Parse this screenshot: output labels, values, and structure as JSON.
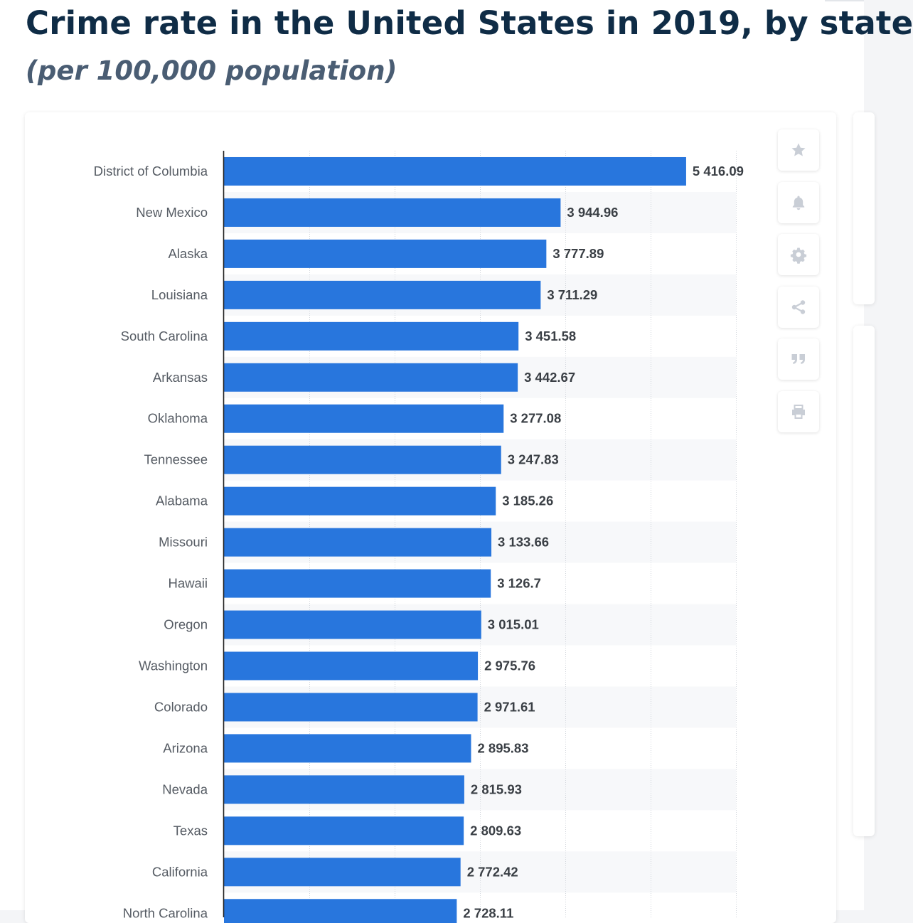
{
  "header": {
    "title": "Crime rate in the United States in 2019, by state",
    "subtitle": "(per 100,000 population)"
  },
  "colors": {
    "bar": "#2876dd",
    "stripe": "#f7f8fa",
    "grid": "#d2d6dc",
    "axis": "#222222",
    "category_text": "#555b63",
    "value_text": "#3a3f45",
    "icon": "#c9ced6"
  },
  "toolbar": {
    "items": [
      {
        "name": "favorite",
        "icon": "star-icon"
      },
      {
        "name": "notification",
        "icon": "bell-icon"
      },
      {
        "name": "settings",
        "icon": "gear-icon"
      },
      {
        "name": "share",
        "icon": "share-icon"
      },
      {
        "name": "cite",
        "icon": "quote-icon"
      },
      {
        "name": "print",
        "icon": "print-icon"
      }
    ]
  },
  "chart_data": {
    "type": "bar",
    "orientation": "horizontal",
    "categories": [
      "District of Columbia",
      "New Mexico",
      "Alaska",
      "Louisiana",
      "South Carolina",
      "Arkansas",
      "Oklahoma",
      "Tennessee",
      "Alabama",
      "Missouri",
      "Hawaii",
      "Oregon",
      "Washington",
      "Colorado",
      "Arizona",
      "Nevada",
      "Texas",
      "California",
      "North Carolina"
    ],
    "values": [
      5416.09,
      3944.96,
      3777.89,
      3711.29,
      3451.58,
      3442.67,
      3277.08,
      3247.83,
      3185.26,
      3133.66,
      3126.7,
      3015.01,
      2975.76,
      2971.61,
      2895.83,
      2815.93,
      2809.63,
      2772.42,
      2728.11
    ],
    "value_labels": [
      "5 416.09",
      "3 944.96",
      "3 777.89",
      "3 711.29",
      "3 451.58",
      "3 442.67",
      "3 277.08",
      "3 247.83",
      "3 185.26",
      "3 133.66",
      "3 126.7",
      "3 015.01",
      "2 975.76",
      "2 971.61",
      "2 895.83",
      "2 815.93",
      "2 809.63",
      "2 772.42",
      "2 728.11"
    ],
    "xlim": [
      0,
      6000
    ],
    "grid": true,
    "data_labels": true
  }
}
